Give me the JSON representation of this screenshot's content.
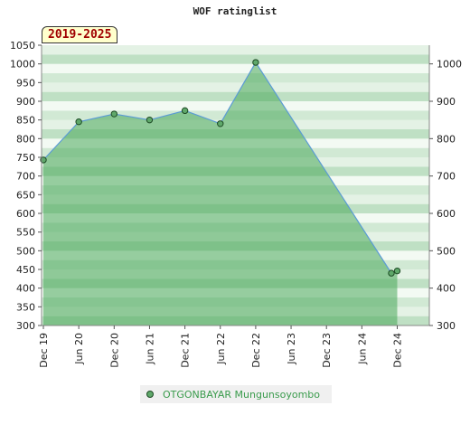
{
  "chart_data": {
    "type": "area",
    "title": "WOF ratinglist",
    "period_label": "2019-2025",
    "x_ticks": [
      "Dec 19",
      "Jun 20",
      "Dec 20",
      "Jun 21",
      "Dec 21",
      "Jun 22",
      "Dec 22",
      "Jun 23",
      "Dec 23",
      "Jun 24",
      "Dec 24"
    ],
    "y_ticks_left": [
      300,
      350,
      400,
      450,
      500,
      550,
      600,
      650,
      700,
      750,
      800,
      850,
      900,
      950,
      1000,
      1050
    ],
    "y_ticks_right": [
      300,
      400,
      500,
      600,
      700,
      800,
      900,
      1000
    ],
    "ylim": [
      300,
      1050
    ],
    "series": [
      {
        "name": "OTGONBAYAR Mungunsoyombo",
        "color": "#5fa86a",
        "x": [
          "Dec 19",
          "Jun 20",
          "Dec 20",
          "Jun 21",
          "Dec 21",
          "Jun 22",
          "Dec 22",
          "Nov 24",
          "Dec 24"
        ],
        "values": [
          743,
          845,
          866,
          850,
          875,
          840,
          1004,
          440,
          446
        ]
      }
    ],
    "legend_position": "bottom-center",
    "grid": true
  }
}
